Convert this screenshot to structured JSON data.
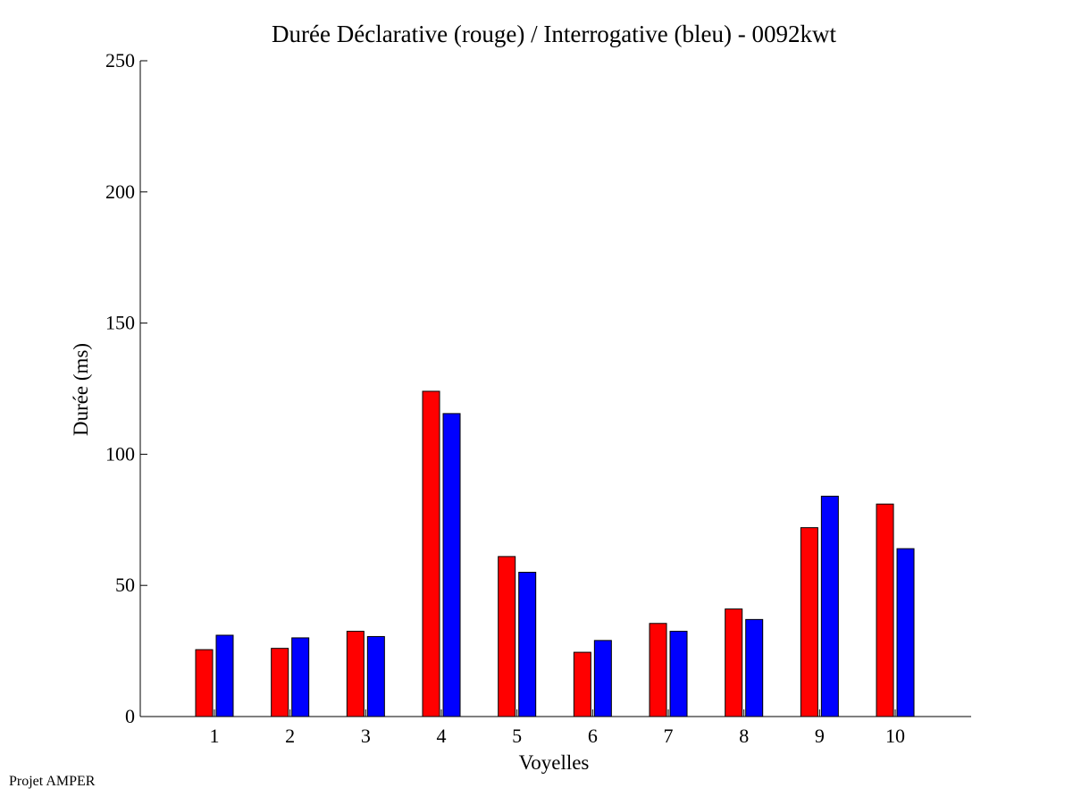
{
  "chart_data": {
    "type": "bar",
    "title": "Durée Déclarative (rouge) / Interrogative (bleu) - 0092kwt",
    "xlabel": "Voyelles",
    "ylabel": "Durée (ms)",
    "categories": [
      "1",
      "2",
      "3",
      "4",
      "5",
      "6",
      "7",
      "8",
      "9",
      "10"
    ],
    "ylim": [
      0,
      250
    ],
    "yticks": [
      0,
      50,
      100,
      150,
      200,
      250
    ],
    "grid": false,
    "series": [
      {
        "color": "#ff0000",
        "values": [
          25.5,
          26,
          32.5,
          124,
          61,
          24.5,
          35.5,
          41,
          72,
          81
        ]
      },
      {
        "color": "#0000ff",
        "values": [
          31,
          30,
          30.5,
          115.5,
          55,
          29,
          32.5,
          37,
          84,
          64
        ]
      }
    ]
  },
  "footer": {
    "credit": "Projet AMPER"
  }
}
